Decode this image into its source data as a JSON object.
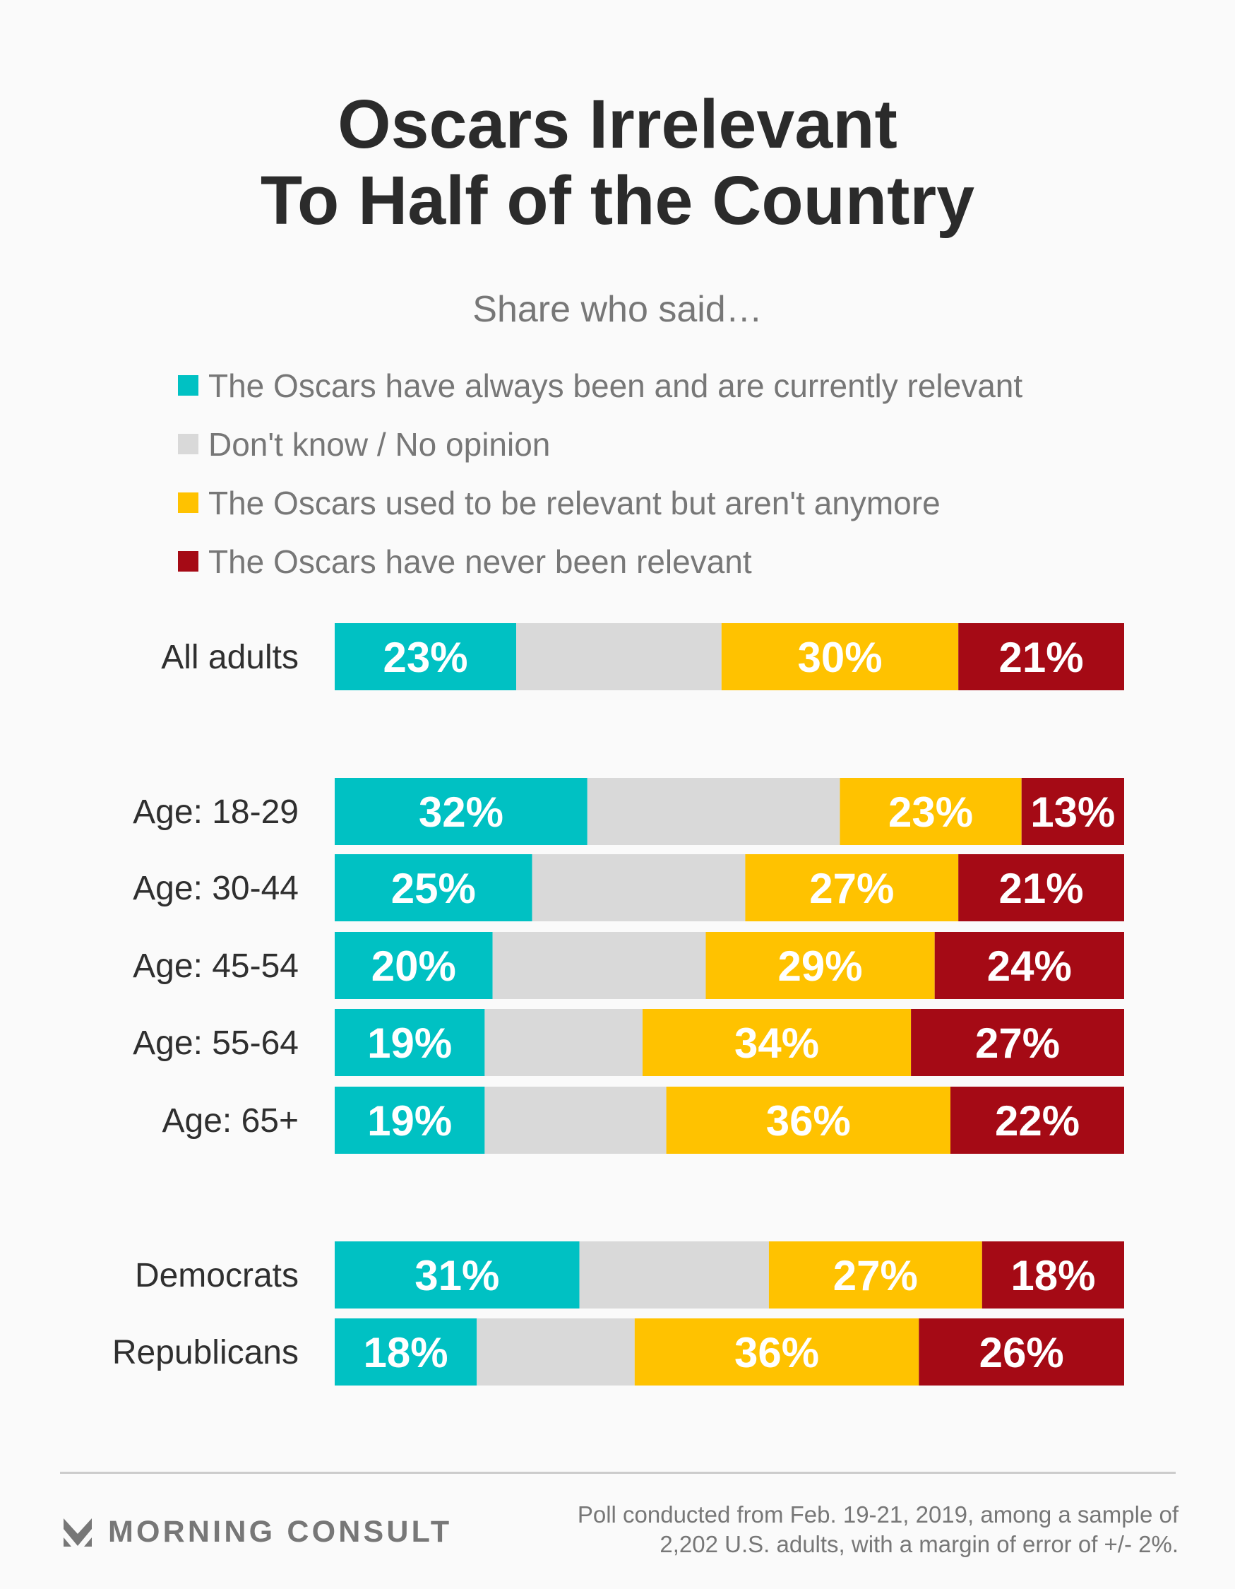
{
  "header": {
    "title_line1": "Oscars Irrelevant",
    "title_line2": "To Half of the Country",
    "subtitle": "Share who said…"
  },
  "legend": [
    {
      "label": "The Oscars have always been and are currently relevant",
      "color": "#00c1c3"
    },
    {
      "label": "Don't know / No opinion",
      "color": "#d9d9d9"
    },
    {
      "label": "The Oscars used to be relevant but aren't anymore",
      "color": "#ffc200"
    },
    {
      "label": "The Oscars have never been relevant",
      "color": "#a50a15"
    }
  ],
  "chart_data": {
    "type": "bar",
    "orientation": "horizontal",
    "stacked": true,
    "unit": "%",
    "title": "Oscars Irrelevant To Half of the Country",
    "subtitle": "Share who said…",
    "xlim": [
      0,
      100
    ],
    "legend_position": "top",
    "categories": [
      "All adults",
      "Age: 18-29",
      "Age: 30-44",
      "Age: 45-54",
      "Age: 55-64",
      "Age: 65+",
      "Democrats",
      "Republicans"
    ],
    "groups": [
      [
        0
      ],
      [
        1,
        2,
        3,
        4,
        5
      ],
      [
        6,
        7
      ]
    ],
    "series": [
      {
        "name": "The Oscars have always been and are currently relevant",
        "color": "#00c1c3",
        "show_labels": true,
        "values": [
          23,
          32,
          25,
          20,
          19,
          19,
          31,
          18
        ]
      },
      {
        "name": "Don't know / No opinion",
        "color": "#d9d9d9",
        "show_labels": false,
        "values": [
          26,
          32,
          27,
          27,
          20,
          23,
          24,
          20
        ]
      },
      {
        "name": "The Oscars used to be relevant but aren't anymore",
        "color": "#ffc200",
        "show_labels": true,
        "values": [
          30,
          23,
          27,
          29,
          34,
          36,
          27,
          36
        ]
      },
      {
        "name": "The Oscars have never been relevant",
        "color": "#a50a15",
        "show_labels": true,
        "values": [
          21,
          13,
          21,
          24,
          27,
          22,
          18,
          26
        ]
      }
    ]
  },
  "footer": {
    "brand": "MORNING CONSULT",
    "note_line1": "Poll conducted from Feb. 19-21, 2019, among a sample of",
    "note_line2": "2,202 U.S. adults, with a margin of error of +/- 2%."
  }
}
